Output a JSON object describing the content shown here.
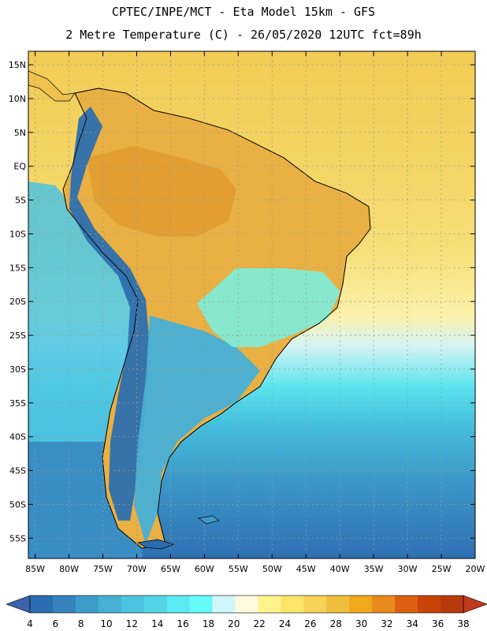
{
  "title": {
    "line1": "CPTEC/INPE/MCT -  Eta Model 15km - GFS",
    "line2": "2 Metre Temperature (C) - 26/05/2020 12UTC fct=89h"
  },
  "map": {
    "region": "South America",
    "variable": "2 Metre Temperature",
    "units": "C",
    "lat_range": [
      -58,
      17
    ],
    "lon_range": [
      -86,
      -20
    ],
    "lat_labels": [
      "15N",
      "10N",
      "5N",
      "EQ",
      "5S",
      "10S",
      "15S",
      "20S",
      "25S",
      "30S",
      "35S",
      "40S",
      "45S",
      "50S",
      "55S"
    ],
    "lat_values": [
      15,
      10,
      5,
      0,
      -5,
      -10,
      -15,
      -20,
      -25,
      -30,
      -35,
      -40,
      -45,
      -50,
      -55
    ],
    "lon_labels": [
      "85W",
      "80W",
      "75W",
      "70W",
      "65W",
      "60W",
      "55W",
      "50W",
      "45W",
      "40W",
      "35W",
      "30W",
      "25W",
      "20W"
    ],
    "lon_values": [
      -85,
      -80,
      -75,
      -70,
      -65,
      -60,
      -55,
      -50,
      -45,
      -40,
      -35,
      -30,
      -25,
      -20
    ]
  },
  "colorbar": {
    "labels": [
      "4",
      "6",
      "8",
      "10",
      "12",
      "14",
      "16",
      "18",
      "20",
      "22",
      "24",
      "26",
      "28",
      "30",
      "32",
      "34",
      "36",
      "38"
    ],
    "colors": [
      "#2a6db0",
      "#3582bd",
      "#3d9cc9",
      "#46b0d6",
      "#4cc3e0",
      "#52d6e6",
      "#5aeaf2",
      "#66fbfb",
      "#cef6fb",
      "#fefbdf",
      "#fef48a",
      "#fde46a",
      "#f6d257",
      "#edbf3c",
      "#f0a91c",
      "#e98a1c",
      "#dc6010",
      "#c84408",
      "#b8390c"
    ],
    "under_color": "#3d63ad",
    "over_color": "#c0391a"
  }
}
